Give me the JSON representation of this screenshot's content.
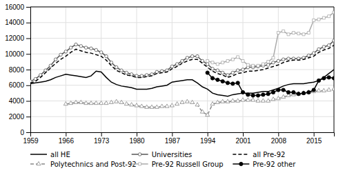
{
  "chart_data": {
    "type": "line",
    "x": [
      1959,
      1960,
      1961,
      1962,
      1963,
      1964,
      1965,
      1966,
      1967,
      1968,
      1969,
      1970,
      1971,
      1972,
      1973,
      1974,
      1975,
      1976,
      1977,
      1978,
      1979,
      1980,
      1981,
      1982,
      1983,
      1984,
      1985,
      1986,
      1987,
      1988,
      1989,
      1990,
      1991,
      1992,
      1993,
      1994,
      1995,
      1996,
      1997,
      1998,
      1999,
      2000,
      2001,
      2002,
      2003,
      2004,
      2005,
      2006,
      2007,
      2008,
      2009,
      2010,
      2011,
      2012,
      2013,
      2014,
      2015,
      2016,
      2017,
      2018,
      2019
    ],
    "series": [
      {
        "name": "all HE",
        "color": "#000000",
        "line_style": "solid",
        "marker": "none",
        "values": [
          6200,
          6300,
          6400,
          6500,
          6700,
          7000,
          7200,
          7400,
          7300,
          7200,
          7100,
          7000,
          7200,
          7800,
          7700,
          7000,
          6400,
          6100,
          5900,
          5800,
          5700,
          5500,
          5500,
          5500,
          5600,
          5800,
          5900,
          6000,
          6400,
          6500,
          6600,
          6700,
          6700,
          6300,
          5800,
          5500,
          5000,
          4800,
          4700,
          4600,
          4800,
          4900,
          5000,
          5000,
          5000,
          5100,
          5200,
          5200,
          5400,
          5600,
          5900,
          6100,
          6200,
          6200,
          6200,
          6300,
          6400,
          6600,
          7000,
          7500,
          8000
        ]
      },
      {
        "name": "Universities",
        "color": "#555555",
        "line_style": "solid",
        "marker": "open-circle",
        "values": [
          6500,
          6800,
          7300,
          7900,
          8500,
          9300,
          9900,
          10300,
          10800,
          11200,
          11000,
          10800,
          10700,
          10500,
          10200,
          9700,
          8900,
          8300,
          7900,
          7600,
          7400,
          7200,
          7200,
          7300,
          7400,
          7700,
          7800,
          7900,
          8400,
          8700,
          9100,
          9500,
          9700,
          9700,
          9100,
          8700,
          8100,
          7900,
          7600,
          7300,
          7600,
          7900,
          8000,
          8300,
          8300,
          8400,
          8500,
          8600,
          8900,
          9100,
          9300,
          9400,
          9400,
          9400,
          9500,
          9800,
          10100,
          10600,
          10900,
          11100,
          11700
        ]
      },
      {
        "name": "all Pre-92",
        "color": "#000000",
        "line_style": "dashed",
        "marker": "none",
        "values": [
          6300,
          6500,
          7000,
          7600,
          8200,
          8800,
          9300,
          9700,
          10200,
          10600,
          10400,
          10200,
          10100,
          9900,
          9700,
          9200,
          8500,
          7900,
          7600,
          7300,
          7200,
          7000,
          7000,
          7100,
          7200,
          7500,
          7600,
          7700,
          8100,
          8400,
          8800,
          9100,
          9300,
          9300,
          8800,
          8300,
          7800,
          7500,
          7300,
          7000,
          7200,
          7500,
          7600,
          7800,
          7800,
          7900,
          8000,
          8200,
          8400,
          8600,
          8900,
          9100,
          9200,
          9200,
          9300,
          9500,
          9700,
          10200,
          10500,
          10700,
          11100
        ]
      },
      {
        "name": "Polytechnics and Post-92",
        "color": "#888888",
        "line_style": "dashed",
        "marker": "open-triangle",
        "values": [
          null,
          null,
          null,
          null,
          null,
          null,
          null,
          3600,
          3700,
          3800,
          3800,
          3700,
          3700,
          3700,
          3700,
          3700,
          3800,
          3900,
          3800,
          3600,
          3500,
          3400,
          3300,
          3200,
          3200,
          3200,
          3300,
          3300,
          3400,
          3600,
          3800,
          3900,
          3800,
          3500,
          2600,
          2200,
          3600,
          3800,
          3900,
          3900,
          4000,
          4000,
          4100,
          4100,
          4100,
          4000,
          4000,
          4000,
          4200,
          4300,
          4500,
          4700,
          4800,
          4900,
          5000,
          5100,
          5200,
          5300,
          5300,
          5400,
          5500
        ]
      },
      {
        "name": "Pre-92 Russell Group",
        "color": "#aaaaaa",
        "line_style": "solid",
        "marker": "open-square",
        "values": [
          null,
          null,
          null,
          null,
          null,
          null,
          null,
          null,
          null,
          null,
          null,
          null,
          null,
          null,
          null,
          null,
          null,
          null,
          null,
          null,
          null,
          null,
          null,
          null,
          null,
          null,
          null,
          null,
          null,
          null,
          null,
          null,
          null,
          null,
          null,
          9100,
          8900,
          8700,
          8900,
          9100,
          9300,
          9600,
          9100,
          8600,
          8500,
          8500,
          8700,
          9000,
          9500,
          12700,
          12900,
          12500,
          12700,
          12600,
          12500,
          12700,
          14300,
          14400,
          14600,
          14800,
          15300
        ]
      },
      {
        "name": "Pre-92 other",
        "color": "#000000",
        "line_style": "solid",
        "marker": "circle",
        "values": [
          null,
          null,
          null,
          null,
          null,
          null,
          null,
          null,
          null,
          null,
          null,
          null,
          null,
          null,
          null,
          null,
          null,
          null,
          null,
          null,
          null,
          null,
          null,
          null,
          null,
          null,
          null,
          null,
          null,
          null,
          null,
          null,
          null,
          null,
          null,
          7600,
          6900,
          6700,
          6500,
          6300,
          6200,
          6300,
          5100,
          4800,
          4700,
          4700,
          4800,
          4900,
          5100,
          5400,
          5400,
          5100,
          5100,
          4900,
          5000,
          5100,
          5400,
          6600,
          6900,
          7000,
          6900
        ]
      }
    ],
    "xlim": [
      1959,
      2019
    ],
    "xticks": [
      1959,
      1966,
      1973,
      1980,
      1987,
      1994,
      2001,
      2008,
      2015
    ],
    "ylim": [
      0,
      16000
    ],
    "yticks": [
      0,
      2000,
      4000,
      6000,
      8000,
      10000,
      12000,
      14000,
      16000
    ],
    "grid": true
  }
}
